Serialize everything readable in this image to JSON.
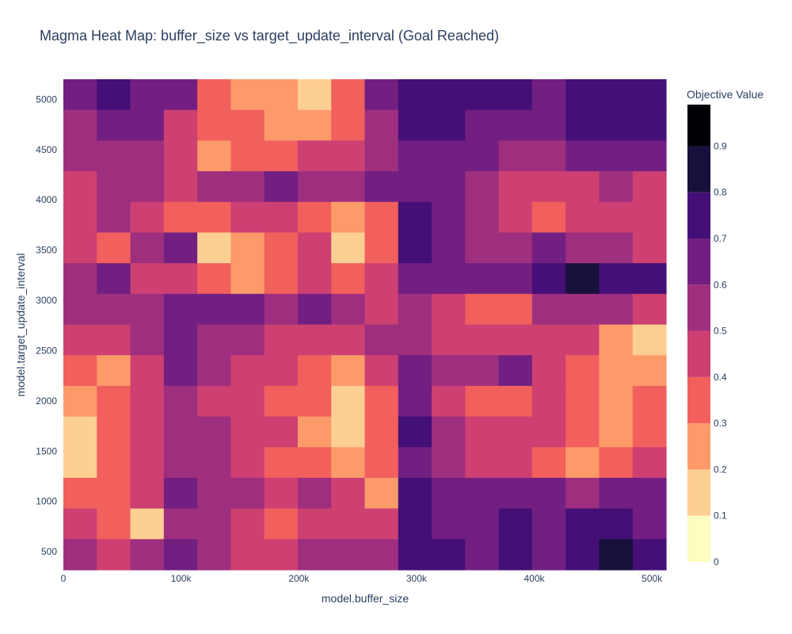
{
  "chart_data": {
    "type": "heatmap",
    "subtype": "contour",
    "title": "Magma Heat Map: buffer_size vs target_update_interval (Goal Reached)",
    "xlabel": "model.buffer_size",
    "ylabel": "model.target_update_interval",
    "xlim": [
      0,
      512000
    ],
    "ylim": [
      320,
      5200
    ],
    "x_ticks": [
      {
        "value": 0,
        "label": "0"
      },
      {
        "value": 100000,
        "label": "100k"
      },
      {
        "value": 200000,
        "label": "200k"
      },
      {
        "value": 300000,
        "label": "300k"
      },
      {
        "value": 400000,
        "label": "400k"
      },
      {
        "value": 500000,
        "label": "500k"
      }
    ],
    "y_ticks": [
      {
        "value": 500,
        "label": "500"
      },
      {
        "value": 1000,
        "label": "1000"
      },
      {
        "value": 1500,
        "label": "1500"
      },
      {
        "value": 2000,
        "label": "2000"
      },
      {
        "value": 2500,
        "label": "2500"
      },
      {
        "value": 3000,
        "label": "3000"
      },
      {
        "value": 3500,
        "label": "3500"
      },
      {
        "value": 4000,
        "label": "4000"
      },
      {
        "value": 4500,
        "label": "4500"
      },
      {
        "value": 5000,
        "label": "5000"
      }
    ],
    "colorscale": "Magma (reversed)",
    "colorbar": {
      "title": "Objective Value",
      "range": [
        0,
        0.99
      ],
      "ticks": [
        {
          "value": 0,
          "label": "0"
        },
        {
          "value": 0.1,
          "label": "0.1"
        },
        {
          "value": 0.2,
          "label": "0.2"
        },
        {
          "value": 0.3,
          "label": "0.3"
        },
        {
          "value": 0.4,
          "label": "0.4"
        },
        {
          "value": 0.5,
          "label": "0.5"
        },
        {
          "value": 0.6,
          "label": "0.6"
        },
        {
          "value": 0.7,
          "label": "0.7"
        },
        {
          "value": 0.8,
          "label": "0.8"
        },
        {
          "value": 0.9,
          "label": "0.9"
        }
      ],
      "bands": [
        {
          "from": 0.0,
          "to": 0.1,
          "color": "#fcfdbf"
        },
        {
          "from": 0.1,
          "to": 0.2,
          "color": "#fecf92"
        },
        {
          "from": 0.2,
          "to": 0.3,
          "color": "#fd9a6a"
        },
        {
          "from": 0.3,
          "to": 0.4,
          "color": "#f1605d"
        },
        {
          "from": 0.4,
          "to": 0.5,
          "color": "#cd4071"
        },
        {
          "from": 0.5,
          "to": 0.6,
          "color": "#9e2f7f"
        },
        {
          "from": 0.6,
          "to": 0.7,
          "color": "#721f81"
        },
        {
          "from": 0.7,
          "to": 0.8,
          "color": "#440f76"
        },
        {
          "from": 0.8,
          "to": 0.9,
          "color": "#180f3d"
        },
        {
          "from": 0.9,
          "to": 0.99,
          "color": "#000004"
        }
      ]
    },
    "grid": [
      [
        0.6,
        0.7,
        0.6,
        0.6,
        0.35,
        0.28,
        0.25,
        0.15,
        0.3,
        0.6,
        0.75,
        0.72,
        0.7,
        0.7,
        0.65,
        0.78,
        0.78,
        0.75
      ],
      [
        0.55,
        0.6,
        0.6,
        0.45,
        0.35,
        0.3,
        0.25,
        0.22,
        0.3,
        0.55,
        0.7,
        0.72,
        0.65,
        0.6,
        0.6,
        0.7,
        0.72,
        0.7
      ],
      [
        0.5,
        0.55,
        0.5,
        0.4,
        0.2,
        0.3,
        0.35,
        0.4,
        0.45,
        0.55,
        0.6,
        0.62,
        0.6,
        0.55,
        0.5,
        0.6,
        0.65,
        0.6
      ],
      [
        0.45,
        0.55,
        0.5,
        0.45,
        0.5,
        0.55,
        0.6,
        0.55,
        0.5,
        0.65,
        0.68,
        0.65,
        0.55,
        0.45,
        0.4,
        0.45,
        0.5,
        0.45
      ],
      [
        0.45,
        0.5,
        0.45,
        0.3,
        0.35,
        0.4,
        0.45,
        0.3,
        0.25,
        0.35,
        0.7,
        0.6,
        0.5,
        0.45,
        0.35,
        0.4,
        0.4,
        0.4
      ],
      [
        0.4,
        0.35,
        0.5,
        0.6,
        0.15,
        0.25,
        0.35,
        0.4,
        0.15,
        0.35,
        0.7,
        0.65,
        0.55,
        0.5,
        0.6,
        0.55,
        0.5,
        0.45
      ],
      [
        0.55,
        0.6,
        0.45,
        0.4,
        0.3,
        0.2,
        0.35,
        0.4,
        0.3,
        0.4,
        0.65,
        0.65,
        0.6,
        0.65,
        0.75,
        0.8,
        0.72,
        0.7
      ],
      [
        0.5,
        0.55,
        0.55,
        0.65,
        0.6,
        0.6,
        0.55,
        0.6,
        0.5,
        0.45,
        0.5,
        0.45,
        0.35,
        0.3,
        0.5,
        0.55,
        0.5,
        0.4
      ],
      [
        0.4,
        0.45,
        0.5,
        0.6,
        0.55,
        0.55,
        0.45,
        0.45,
        0.4,
        0.5,
        0.55,
        0.45,
        0.4,
        0.45,
        0.45,
        0.4,
        0.25,
        0.15
      ],
      [
        0.35,
        0.25,
        0.4,
        0.6,
        0.5,
        0.45,
        0.4,
        0.35,
        0.25,
        0.4,
        0.6,
        0.5,
        0.55,
        0.6,
        0.45,
        0.3,
        0.2,
        0.25
      ],
      [
        0.2,
        0.3,
        0.4,
        0.5,
        0.45,
        0.4,
        0.35,
        0.3,
        0.15,
        0.3,
        0.6,
        0.45,
        0.3,
        0.3,
        0.4,
        0.35,
        0.25,
        0.3
      ],
      [
        0.15,
        0.3,
        0.4,
        0.55,
        0.5,
        0.45,
        0.4,
        0.2,
        0.1,
        0.35,
        0.75,
        0.5,
        0.4,
        0.4,
        0.45,
        0.3,
        0.25,
        0.35
      ],
      [
        0.1,
        0.3,
        0.4,
        0.55,
        0.5,
        0.4,
        0.35,
        0.3,
        0.25,
        0.35,
        0.65,
        0.55,
        0.45,
        0.45,
        0.35,
        0.25,
        0.3,
        0.4
      ],
      [
        0.3,
        0.35,
        0.45,
        0.6,
        0.55,
        0.5,
        0.4,
        0.55,
        0.4,
        0.25,
        0.7,
        0.6,
        0.65,
        0.65,
        0.6,
        0.55,
        0.6,
        0.65
      ],
      [
        0.4,
        0.35,
        0.15,
        0.55,
        0.5,
        0.4,
        0.3,
        0.45,
        0.45,
        0.4,
        0.72,
        0.68,
        0.65,
        0.7,
        0.65,
        0.7,
        0.75,
        0.65
      ],
      [
        0.5,
        0.45,
        0.5,
        0.65,
        0.55,
        0.45,
        0.4,
        0.55,
        0.55,
        0.5,
        0.75,
        0.7,
        0.68,
        0.72,
        0.65,
        0.7,
        0.8,
        0.7
      ]
    ]
  }
}
